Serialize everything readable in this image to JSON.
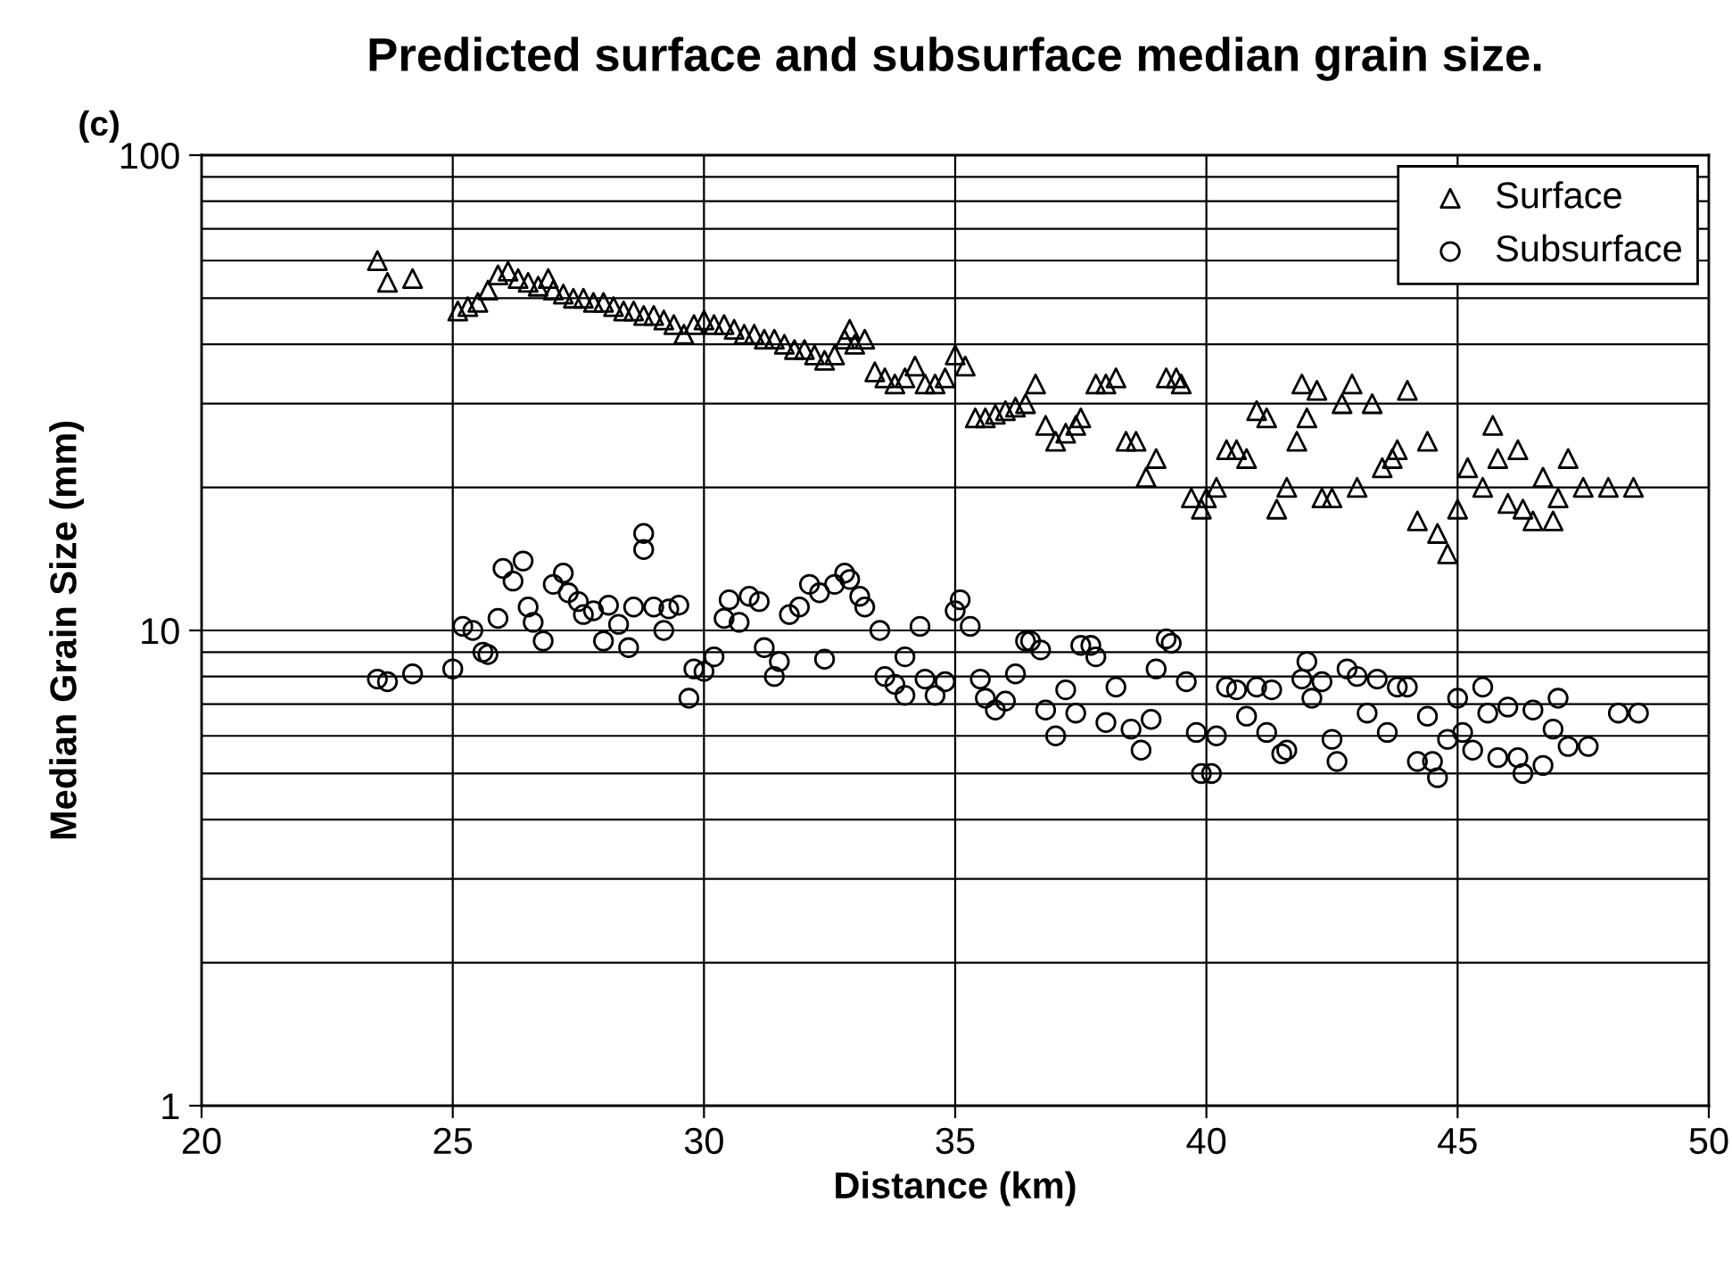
{
  "chart_data": {
    "type": "scatter",
    "title": "Predicted surface and subsurface median grain size.",
    "xlabel": "Distance (km)",
    "ylabel": "Median Grain Size (mm)",
    "annotations": [
      "(c)"
    ],
    "log": "y",
    "grid": true,
    "legend": "top right",
    "xlim": [
      20,
      50
    ],
    "xticks": [
      20,
      25,
      30,
      35,
      40,
      45,
      50
    ],
    "ylim": [
      1,
      100
    ],
    "yticks": [
      1,
      10,
      100
    ],
    "series": [
      {
        "name": "Surface",
        "color": "#000000",
        "marker": "triangle",
        "x": [
          23.5,
          23.7,
          24.2,
          25.1,
          25.3,
          25.5,
          25.7,
          25.9,
          26.1,
          26.3,
          26.5,
          26.7,
          26.9,
          27.0,
          27.2,
          27.4,
          27.6,
          27.8,
          28.0,
          28.2,
          28.4,
          28.6,
          28.8,
          29.0,
          29.2,
          29.4,
          29.6,
          29.8,
          30.0,
          30.2,
          30.4,
          30.6,
          30.8,
          31.0,
          31.2,
          31.4,
          31.6,
          31.8,
          32.0,
          32.2,
          32.4,
          32.6,
          32.8,
          32.9,
          33.0,
          33.2,
          33.4,
          33.6,
          33.8,
          34.0,
          34.2,
          34.4,
          34.6,
          34.8,
          35.0,
          35.2,
          35.4,
          35.6,
          35.8,
          36.0,
          36.2,
          36.4,
          36.6,
          36.8,
          37.0,
          37.2,
          37.4,
          37.5,
          37.8,
          38.0,
          38.2,
          38.4,
          38.6,
          38.8,
          39.0,
          39.2,
          39.4,
          39.5,
          39.7,
          39.9,
          40.0,
          40.2,
          40.4,
          40.6,
          40.8,
          41.0,
          41.2,
          41.4,
          41.6,
          41.8,
          41.9,
          42.0,
          42.2,
          42.3,
          42.5,
          42.7,
          42.9,
          43.0,
          43.3,
          43.5,
          43.7,
          43.8,
          44.0,
          44.2,
          44.4,
          44.6,
          44.8,
          45.0,
          45.2,
          45.5,
          45.7,
          45.8,
          46.0,
          46.2,
          46.3,
          46.5,
          46.7,
          46.9,
          47.0,
          47.2,
          47.5,
          48.0,
          48.5
        ],
        "values": [
          60,
          54,
          55,
          47,
          48,
          49,
          52,
          56,
          57,
          55,
          54,
          53,
          55,
          52,
          51,
          50,
          50,
          49,
          49,
          48,
          47,
          47,
          46,
          46,
          45,
          44,
          42,
          44,
          45,
          44,
          44,
          43,
          42,
          42,
          41,
          41,
          40,
          39,
          39,
          38,
          37,
          38,
          41,
          43,
          40,
          41,
          35,
          34,
          33,
          34,
          36,
          33,
          33,
          34,
          38,
          36,
          28,
          28,
          28.5,
          29,
          29.5,
          30,
          33,
          27,
          25,
          26,
          27,
          28,
          33,
          33,
          34,
          25,
          25,
          21,
          23,
          34,
          34,
          33,
          19,
          18,
          19,
          20,
          24,
          24,
          23,
          29,
          28,
          18,
          20,
          25,
          33,
          28,
          32,
          19,
          19,
          30,
          33,
          20,
          30,
          22,
          23,
          24,
          32,
          17,
          25,
          16,
          14.5,
          18,
          22,
          20,
          27,
          23,
          18.5,
          24,
          18,
          17,
          21,
          17,
          19,
          23,
          20,
          20,
          20
        ]
      },
      {
        "name": "Subsurface",
        "color": "#000000",
        "marker": "circle",
        "x": [
          23.5,
          23.7,
          24.2,
          25.0,
          25.2,
          25.4,
          25.6,
          25.7,
          25.9,
          26.0,
          26.2,
          26.4,
          26.5,
          26.6,
          26.8,
          27.0,
          27.2,
          27.3,
          27.5,
          27.6,
          27.8,
          28.0,
          28.1,
          28.3,
          28.5,
          28.6,
          28.8,
          28.8,
          29.0,
          29.2,
          29.3,
          29.5,
          29.7,
          29.8,
          30.0,
          30.2,
          30.4,
          30.5,
          30.7,
          30.9,
          31.1,
          31.2,
          31.4,
          31.5,
          31.7,
          31.9,
          32.1,
          32.3,
          32.4,
          32.6,
          32.8,
          32.9,
          33.1,
          33.2,
          33.5,
          33.6,
          33.8,
          34.0,
          34.0,
          34.3,
          34.4,
          34.6,
          34.8,
          35.0,
          35.1,
          35.3,
          35.5,
          35.6,
          35.8,
          36.0,
          36.2,
          36.4,
          36.5,
          36.7,
          36.8,
          37.0,
          37.2,
          37.4,
          37.5,
          37.7,
          37.8,
          38.0,
          38.2,
          38.5,
          38.7,
          38.9,
          39.0,
          39.2,
          39.3,
          39.6,
          39.8,
          39.9,
          40.1,
          40.2,
          40.4,
          40.6,
          40.8,
          41.0,
          41.2,
          41.3,
          41.5,
          41.6,
          41.9,
          42.0,
          42.1,
          42.3,
          42.5,
          42.6,
          42.8,
          43.0,
          43.2,
          43.4,
          43.6,
          43.8,
          44.0,
          44.2,
          44.4,
          44.5,
          44.6,
          44.8,
          45.0,
          45.1,
          45.3,
          45.5,
          45.6,
          45.8,
          46.0,
          46.2,
          46.3,
          46.5,
          46.7,
          46.9,
          47.0,
          47.2,
          47.6,
          48.2,
          48.6
        ],
        "values": [
          7.9,
          7.8,
          8.1,
          8.3,
          10.2,
          10,
          9,
          8.9,
          10.6,
          13.5,
          12.7,
          14,
          11.2,
          10.4,
          9.5,
          12.5,
          13.2,
          12,
          11.5,
          10.8,
          11,
          9.5,
          11.3,
          10.3,
          9.2,
          11.2,
          16,
          14.8,
          11.2,
          10,
          11.1,
          11.3,
          7.2,
          8.3,
          8.2,
          8.8,
          10.6,
          11.6,
          10.4,
          11.8,
          11.5,
          9.2,
          8.0,
          8.6,
          10.8,
          11.2,
          12.5,
          12,
          8.7,
          12.5,
          13.2,
          12.8,
          11.8,
          11.2,
          10,
          8,
          7.7,
          7.3,
          8.8,
          10.2,
          7.9,
          7.3,
          7.8,
          11,
          11.6,
          10.2,
          7.9,
          7.2,
          6.8,
          7.1,
          8.1,
          9.5,
          9.5,
          9.1,
          6.8,
          6.0,
          7.5,
          6.7,
          9.3,
          9.3,
          8.8,
          6.4,
          7.6,
          6.2,
          5.6,
          6.5,
          8.3,
          9.6,
          9.4,
          7.8,
          6.1,
          5.0,
          5.0,
          6.0,
          7.6,
          7.5,
          6.6,
          7.6,
          6.1,
          7.5,
          5.5,
          5.6,
          7.9,
          8.6,
          7.2,
          7.8,
          5.9,
          5.3,
          8.3,
          8.0,
          6.7,
          7.9,
          6.1,
          7.6,
          7.6,
          5.3,
          6.6,
          5.3,
          4.9,
          5.9,
          7.2,
          6.1,
          5.6,
          7.6,
          6.7,
          5.4,
          6.9,
          5.4,
          5.0,
          6.8,
          5.2,
          6.2,
          7.2,
          5.7,
          5.7,
          6.7,
          6.7
        ]
      }
    ]
  }
}
